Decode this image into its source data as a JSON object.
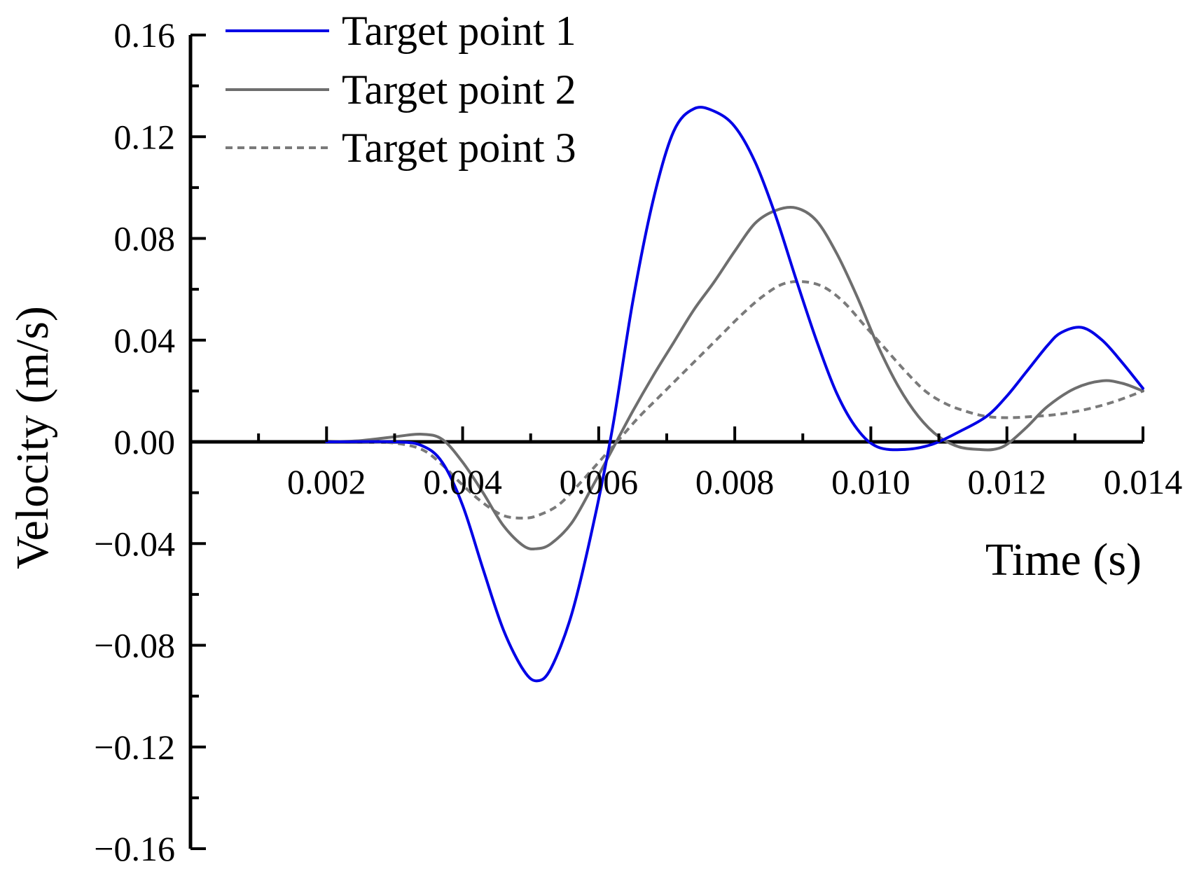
{
  "chart_data": {
    "type": "line",
    "title": "",
    "xlabel": "Time (s)",
    "ylabel": "Velocity (m/s)",
    "xlim": [
      0,
      0.014
    ],
    "ylim": [
      -0.16,
      0.16
    ],
    "x_ticks": [
      0.002,
      0.004,
      0.006,
      0.008,
      0.01,
      0.012,
      0.014
    ],
    "x_tick_labels": [
      "0.002",
      "0.004",
      "0.006",
      "0.008",
      "0.010",
      "0.012",
      "0.014"
    ],
    "y_ticks": [
      0.16,
      0.12,
      0.08,
      0.04,
      0.0,
      -0.04,
      -0.08,
      -0.12,
      -0.16
    ],
    "y_tick_labels": [
      "0.16",
      "0.12",
      "0.08",
      "0.04",
      "0.00",
      "−0.04",
      "−0.08",
      "−0.12",
      "−0.16"
    ],
    "grid": false,
    "legend_position": "top-left",
    "series": [
      {
        "name": "Target point 1",
        "color": "#0000e6",
        "dash": "solid",
        "x": [
          0.0,
          0.001,
          0.002,
          0.003,
          0.0034,
          0.0037,
          0.004,
          0.0043,
          0.0046,
          0.0049,
          0.0051,
          0.0053,
          0.0056,
          0.0059,
          0.0062,
          0.0065,
          0.0068,
          0.0071,
          0.0074,
          0.0077,
          0.008,
          0.0083,
          0.0086,
          0.0089,
          0.0092,
          0.0095,
          0.0098,
          0.0101,
          0.0105,
          0.0109,
          0.0113,
          0.0117,
          0.012,
          0.0123,
          0.0126,
          0.0128,
          0.0131,
          0.0134,
          0.0137,
          0.014
        ],
        "y": [
          0.0,
          0.0,
          0.0,
          0.0,
          -0.0015,
          -0.008,
          -0.025,
          -0.05,
          -0.074,
          -0.09,
          -0.094,
          -0.089,
          -0.068,
          -0.035,
          0.005,
          0.055,
          0.095,
          0.122,
          0.131,
          0.13,
          0.124,
          0.11,
          0.089,
          0.064,
          0.04,
          0.019,
          0.005,
          -0.002,
          -0.003,
          -0.001,
          0.004,
          0.01,
          0.018,
          0.028,
          0.038,
          0.043,
          0.045,
          0.04,
          0.031,
          0.021
        ]
      },
      {
        "name": "Target point 2",
        "color": "#6e6e6e",
        "dash": "solid",
        "x": [
          0.0,
          0.001,
          0.002,
          0.0025,
          0.003,
          0.0034,
          0.0037,
          0.004,
          0.0043,
          0.0046,
          0.0049,
          0.0051,
          0.0053,
          0.0056,
          0.0059,
          0.0062,
          0.0065,
          0.0068,
          0.0071,
          0.0074,
          0.0077,
          0.008,
          0.0083,
          0.0086,
          0.0089,
          0.0092,
          0.0095,
          0.0098,
          0.0101,
          0.0104,
          0.0107,
          0.011,
          0.0113,
          0.0116,
          0.0118,
          0.012,
          0.0123,
          0.0126,
          0.013,
          0.0134,
          0.0137,
          0.014
        ],
        "y": [
          0.0,
          0.0,
          0.0,
          0.0005,
          0.002,
          0.003,
          0.001,
          -0.008,
          -0.02,
          -0.033,
          -0.041,
          -0.042,
          -0.04,
          -0.032,
          -0.018,
          -0.003,
          0.012,
          0.026,
          0.039,
          0.052,
          0.063,
          0.075,
          0.086,
          0.091,
          0.092,
          0.087,
          0.074,
          0.057,
          0.038,
          0.022,
          0.01,
          0.002,
          -0.002,
          -0.003,
          -0.003,
          -0.001,
          0.006,
          0.014,
          0.021,
          0.024,
          0.023,
          0.02
        ]
      },
      {
        "name": "Target point 3",
        "color": "#7a7a7a",
        "dash": "dashed",
        "x": [
          0.0,
          0.001,
          0.002,
          0.0025,
          0.003,
          0.0034,
          0.0037,
          0.004,
          0.0043,
          0.0046,
          0.0049,
          0.0051,
          0.0054,
          0.0057,
          0.006,
          0.0063,
          0.0066,
          0.0069,
          0.0072,
          0.0075,
          0.0078,
          0.0081,
          0.0084,
          0.0087,
          0.009,
          0.0093,
          0.0096,
          0.0099,
          0.0102,
          0.0105,
          0.0108,
          0.0111,
          0.0114,
          0.0117,
          0.012,
          0.0124,
          0.0128,
          0.0132,
          0.0136,
          0.014
        ],
        "y": [
          0.0,
          0.0,
          0.0,
          0.0,
          -0.0005,
          -0.003,
          -0.009,
          -0.017,
          -0.024,
          -0.029,
          -0.03,
          -0.029,
          -0.025,
          -0.017,
          -0.008,
          0.001,
          0.01,
          0.018,
          0.026,
          0.034,
          0.042,
          0.05,
          0.057,
          0.062,
          0.063,
          0.061,
          0.055,
          0.046,
          0.037,
          0.028,
          0.02,
          0.015,
          0.012,
          0.01,
          0.0095,
          0.01,
          0.011,
          0.013,
          0.016,
          0.02
        ]
      }
    ]
  }
}
